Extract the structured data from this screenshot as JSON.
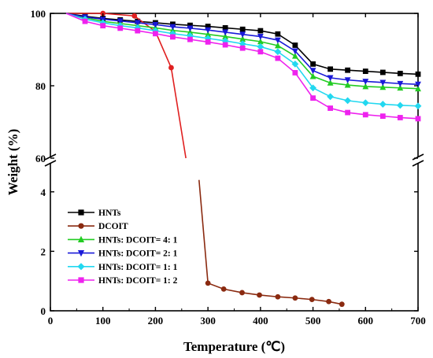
{
  "chart_data": {
    "type": "line",
    "title": "",
    "xlabel": "Temperature (℃)",
    "ylabel": "Weight (%)",
    "xlim": [
      0,
      700
    ],
    "x_ticks": [
      0,
      100,
      200,
      300,
      400,
      500,
      600,
      700
    ],
    "y_axis": "broken",
    "ylim_upper": [
      60,
      100
    ],
    "ylim_lower": [
      0,
      5
    ],
    "y_ticks_upper": [
      60,
      80,
      100
    ],
    "y_ticks_lower": [
      0,
      2,
      4
    ],
    "grid": false,
    "legend_position": "bottom-left",
    "series": [
      {
        "name": "HNTs",
        "color": "#000000",
        "marker": "square",
        "x": [
          30,
          66,
          100,
          133,
          166,
          200,
          233,
          266,
          300,
          333,
          366,
          400,
          433,
          466,
          500,
          533,
          566,
          600,
          633,
          666,
          700
        ],
        "y": [
          100,
          99.2,
          98.6,
          98.2,
          97.8,
          97.4,
          97.0,
          96.7,
          96.4,
          96.0,
          95.6,
          95.2,
          94.3,
          91.2,
          86.0,
          84.6,
          84.3,
          84.0,
          83.7,
          83.4,
          83.2
        ]
      },
      {
        "name": "DCOIT",
        "color": "#e02020",
        "marker": "circle",
        "x": [
          30,
          100,
          160,
          200,
          230,
          258,
          283,
          300,
          330,
          365,
          398,
          433,
          466,
          498,
          530,
          555
        ],
        "y": [
          100,
          100,
          99.3,
          95.0,
          85.0,
          60.0,
          4.4,
          0.93,
          0.73,
          0.61,
          0.53,
          0.47,
          0.43,
          0.38,
          0.31,
          0.22
        ]
      },
      {
        "name": "HNTs: DCOIT= 4: 1",
        "color": "#22cc22",
        "marker": "triangle-up",
        "x": [
          30,
          66,
          100,
          133,
          166,
          200,
          233,
          266,
          300,
          333,
          366,
          400,
          433,
          466,
          500,
          533,
          566,
          600,
          633,
          666,
          700
        ],
        "y": [
          100,
          98.8,
          97.8,
          97.2,
          96.6,
          96.0,
          95.3,
          94.8,
          94.2,
          93.6,
          92.9,
          92.2,
          91.1,
          88.2,
          82.6,
          80.8,
          80.2,
          79.8,
          79.6,
          79.4,
          79.2
        ]
      },
      {
        "name": "HNTs: DCOIT= 2: 1",
        "color": "#1a1ad8",
        "marker": "triangle-down",
        "x": [
          30,
          66,
          100,
          133,
          166,
          200,
          233,
          266,
          300,
          333,
          366,
          400,
          433,
          466,
          500,
          533,
          566,
          600,
          633,
          666,
          700
        ],
        "y": [
          100,
          99.0,
          98.4,
          97.9,
          97.4,
          96.9,
          96.3,
          95.9,
          95.4,
          94.8,
          94.2,
          93.6,
          92.6,
          89.6,
          84.2,
          82.2,
          81.6,
          81.2,
          80.9,
          80.6,
          80.4
        ]
      },
      {
        "name": "HNTs: DCOIT= 1: 1",
        "color": "#22d8f0",
        "marker": "diamond",
        "x": [
          30,
          66,
          100,
          133,
          166,
          200,
          233,
          266,
          300,
          333,
          366,
          400,
          433,
          466,
          500,
          533,
          566,
          600,
          633,
          666,
          700
        ],
        "y": [
          100,
          98.4,
          97.4,
          96.6,
          96.0,
          95.2,
          94.4,
          93.8,
          93.1,
          92.4,
          91.6,
          90.8,
          89.4,
          86.0,
          79.4,
          77.0,
          75.9,
          75.3,
          74.9,
          74.6,
          74.4
        ]
      },
      {
        "name": "HNTs: DCOIT= 1: 2",
        "color": "#ee22ee",
        "marker": "square",
        "x": [
          30,
          66,
          100,
          133,
          166,
          200,
          233,
          266,
          300,
          333,
          366,
          400,
          433,
          466,
          500,
          533,
          566,
          600,
          633,
          666,
          700
        ],
        "y": [
          100,
          97.8,
          96.6,
          95.9,
          95.2,
          94.4,
          93.5,
          92.8,
          92.1,
          91.3,
          90.4,
          89.4,
          87.6,
          83.6,
          76.6,
          73.8,
          72.6,
          72.0,
          71.6,
          71.2,
          70.9
        ]
      }
    ]
  }
}
